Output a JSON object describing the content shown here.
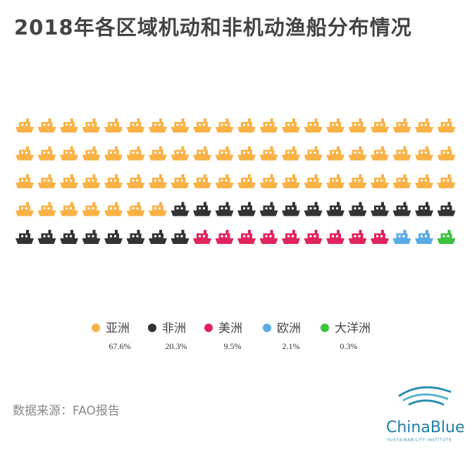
{
  "chart_data": {
    "type": "pictogram",
    "title": "2018年各区域机动和非机动渔船分布情况",
    "series": [
      {
        "name": "亚洲",
        "color": "#f9b246",
        "values": [
          67.6
        ],
        "value_labels": [
          "67.6%"
        ]
      },
      {
        "name": "非洲",
        "color": "#333333",
        "values": [
          20.3
        ],
        "value_labels": [
          "20.3%"
        ]
      },
      {
        "name": "美洲",
        "color": "#e0245e",
        "values": [
          9.5
        ],
        "value_labels": [
          "9.5%"
        ]
      },
      {
        "name": "欧洲",
        "color": "#5aabe8",
        "values": [
          2.1
        ],
        "value_labels": [
          "2.1%"
        ]
      },
      {
        "name": "大洋洲",
        "color": "#3cc23c",
        "values": [
          0.3
        ],
        "value_labels": [
          "0.3%"
        ]
      }
    ],
    "source": "数据来源：FAO报告"
  },
  "logo": {
    "name": "ChinaBlue",
    "tagline": "SUSTAINABILITY INSTITUTE"
  }
}
